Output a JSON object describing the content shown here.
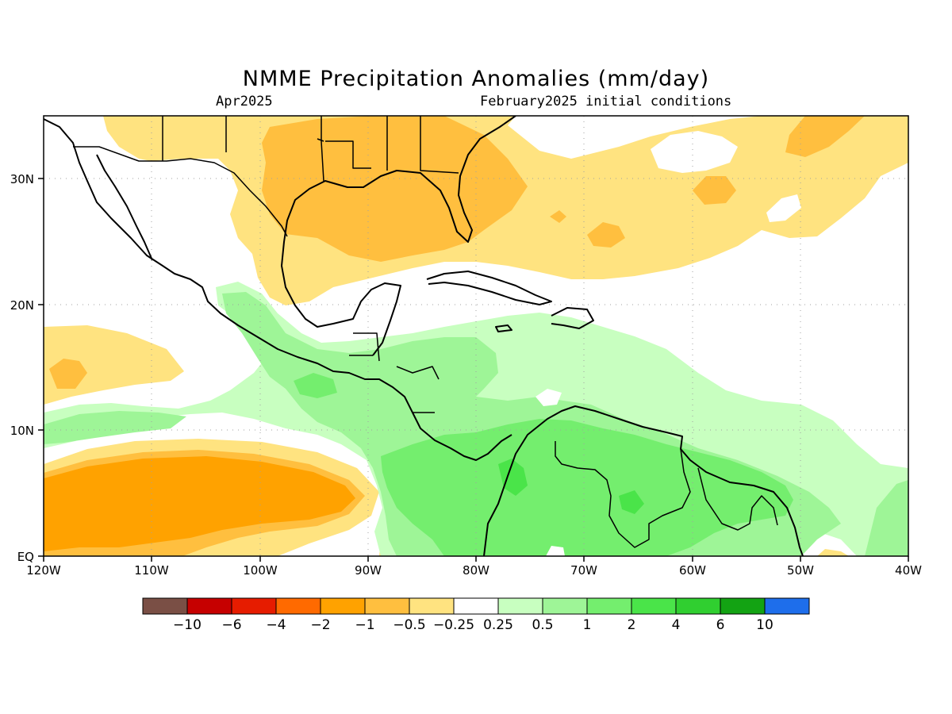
{
  "title": "NMME Precipitation Anomalies (mm/day)",
  "subtitle_left": "Apr2025",
  "subtitle_right": "February2025 initial conditions",
  "map": {
    "lon_range": [
      -120,
      -40
    ],
    "lat_range": [
      0,
      35
    ],
    "x_ticks": [
      "120W",
      "110W",
      "100W",
      "90W",
      "80W",
      "70W",
      "60W",
      "50W",
      "40W"
    ],
    "y_ticks": [
      "EQ",
      "10N",
      "20N",
      "30N"
    ],
    "grid": "dotted"
  },
  "colorbar": {
    "colors": [
      "#7a4f45",
      "#c60000",
      "#e61c00",
      "#ff6a00",
      "#ffa200",
      "#ffbf3f",
      "#ffe380",
      "#ffffff",
      "#c8ffc0",
      "#9ef597",
      "#74ee6e",
      "#4ae449",
      "#30cf30",
      "#13a313",
      "#1e6eeb"
    ],
    "labels": [
      "−10",
      "−6",
      "−4",
      "−2",
      "−1",
      "−0.5",
      "−0.25",
      "0.25",
      "0.5",
      "1",
      "2",
      "4",
      "6",
      "10"
    ]
  },
  "fill_colors": {
    "light_orange": "#ffe380",
    "medium_orange": "#ffbf3f",
    "dark_orange": "#ffa200",
    "light_green": "#c8ffc0",
    "medium_green": "#9ef597",
    "green": "#74ee6e",
    "bright_green": "#4ae449"
  }
}
